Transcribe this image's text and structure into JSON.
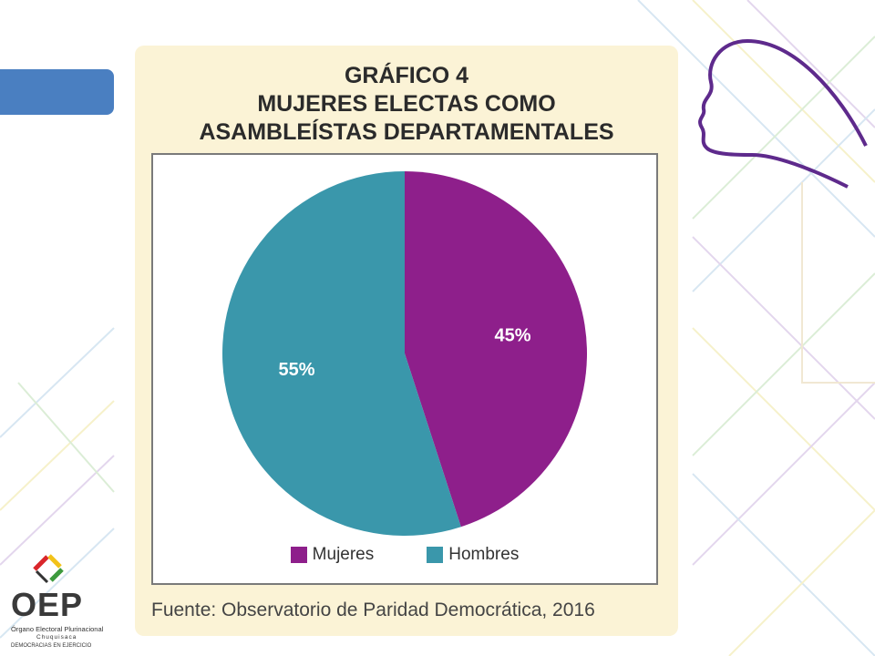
{
  "chart_data": {
    "type": "pie",
    "title_lines": [
      "GRÁFICO 4",
      "MUJERES ELECTAS COMO",
      "ASAMBLEÍSTAS DEPARTAMENTALES"
    ],
    "slices": [
      {
        "label": "Mujeres",
        "value": 45,
        "display": "45%",
        "color": "#8e1f8b"
      },
      {
        "label": "Hombres",
        "value": 55,
        "display": "55%",
        "color": "#3a97ab"
      }
    ],
    "legend_position": "bottom",
    "source": "Fuente: Observatorio de Paridad Democrática, 2016"
  },
  "logo": {
    "name": "OEP",
    "line1": "Órgano Electoral Plurinacional",
    "line2": "Chuquisaca",
    "line3": "DEMOCRACIAS EN EJERCICIO"
  },
  "colors": {
    "accent_blue": "#4a7fc1",
    "card_background": "#fbf3d6",
    "decor_purple": "#5e2a8c"
  }
}
